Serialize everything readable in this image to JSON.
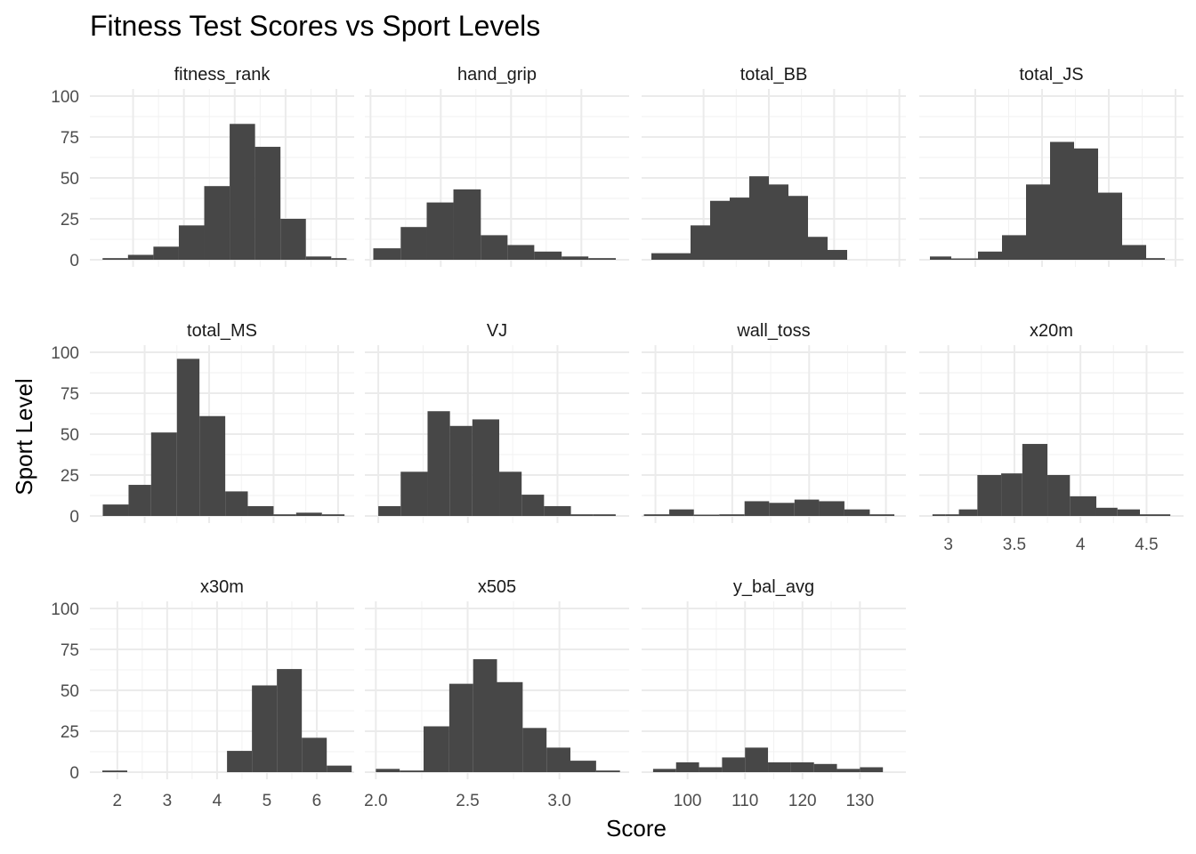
{
  "chart_data": {
    "type": "bar",
    "title": "Fitness Test Scores vs Sport Levels",
    "xlabel": "Score",
    "ylabel": "Sport Level",
    "ylim": [
      0,
      100
    ],
    "y_ticks": [
      0,
      25,
      50,
      75,
      100
    ],
    "grid": true,
    "bar_color": "#474747",
    "facets": [
      {
        "name": "fitness_rank",
        "xlim": [
          -2.85,
          2.35
        ],
        "x_ticks": [
          -2,
          -1,
          0,
          1,
          2
        ],
        "bins": [
          [
            -2.6,
            -2.1,
            1
          ],
          [
            -2.1,
            -1.6,
            3
          ],
          [
            -1.6,
            -1.1,
            8
          ],
          [
            -1.1,
            -0.6,
            21
          ],
          [
            -0.6,
            -0.1,
            45
          ],
          [
            -0.1,
            0.4,
            83
          ],
          [
            0.4,
            0.9,
            69
          ],
          [
            0.9,
            1.4,
            25
          ],
          [
            1.4,
            1.9,
            2
          ],
          [
            1.9,
            2.2,
            1
          ]
        ]
      },
      {
        "name": "hand_grip",
        "xlim": [
          9.2,
          46.8
        ],
        "x_ticks": [
          10,
          20,
          30,
          40
        ],
        "bins": [
          [
            10.4,
            14.3,
            7
          ],
          [
            14.3,
            18.0,
            20
          ],
          [
            18.0,
            21.8,
            35
          ],
          [
            21.8,
            25.7,
            43
          ],
          [
            25.7,
            29.5,
            15
          ],
          [
            29.5,
            33.3,
            9
          ],
          [
            33.3,
            37.2,
            5
          ],
          [
            37.2,
            41.0,
            2
          ],
          [
            41.0,
            44.9,
            1
          ]
        ]
      },
      {
        "name": "total_BB",
        "xlim": [
          1,
          82
        ],
        "x_ticks": [
          20,
          40,
          60,
          80
        ],
        "bins": [
          [
            4,
            10,
            4
          ],
          [
            10,
            16,
            4
          ],
          [
            16,
            22,
            21
          ],
          [
            22,
            28,
            36
          ],
          [
            28,
            34,
            38
          ],
          [
            34,
            40,
            51
          ],
          [
            40,
            46,
            46
          ],
          [
            46,
            52,
            39
          ],
          [
            52,
            58,
            14
          ],
          [
            58,
            64,
            6
          ]
        ]
      },
      {
        "name": "total_JS",
        "xlim": [
          29,
          128
        ],
        "x_ticks": [
          50,
          75,
          100,
          125
        ],
        "bins": [
          [
            33,
            41,
            2
          ],
          [
            41,
            51,
            0
          ],
          [
            51,
            60,
            5
          ],
          [
            60,
            69,
            15
          ],
          [
            69,
            78,
            46
          ],
          [
            78,
            87,
            72
          ],
          [
            87,
            96,
            68
          ],
          [
            96,
            105,
            41
          ],
          [
            105,
            114,
            9
          ],
          [
            114,
            121,
            1
          ]
        ]
      },
      {
        "name": "total_MS",
        "xlim": [
          23,
          105
        ],
        "x_ticks": [
          40,
          60,
          80,
          100
        ],
        "bins": [
          [
            27,
            35,
            7
          ],
          [
            35,
            42,
            19
          ],
          [
            42,
            50,
            51
          ],
          [
            50,
            57,
            96
          ],
          [
            57,
            65,
            61
          ],
          [
            65,
            72,
            15
          ],
          [
            72,
            80,
            6
          ],
          [
            80,
            87,
            1
          ],
          [
            87,
            95,
            2
          ],
          [
            95,
            102,
            1
          ]
        ]
      },
      {
        "name": "VJ",
        "xlim": [
          17,
          76
        ],
        "x_ticks": [
          20,
          40,
          60
        ],
        "bins": [
          [
            20,
            25,
            6
          ],
          [
            25,
            31,
            27
          ],
          [
            31,
            36,
            64
          ],
          [
            36,
            41,
            55
          ],
          [
            41,
            47,
            59
          ],
          [
            47,
            52,
            27
          ],
          [
            52,
            57,
            13
          ],
          [
            57,
            63,
            6
          ],
          [
            63,
            68,
            1
          ],
          [
            68,
            73,
            1
          ]
        ]
      },
      {
        "name": "wall_toss",
        "xlim": [
          -1.8,
          32.6
        ],
        "x_ticks": [
          0,
          10,
          20,
          30
        ],
        "bins": [
          [
            -1.5,
            1.8,
            1
          ],
          [
            1.8,
            5.0,
            4
          ],
          [
            5.0,
            8.3,
            0
          ],
          [
            8.3,
            11.6,
            1
          ],
          [
            11.6,
            14.8,
            9
          ],
          [
            14.8,
            18.1,
            8
          ],
          [
            18.1,
            21.3,
            10
          ],
          [
            21.3,
            24.6,
            9
          ],
          [
            24.6,
            27.9,
            4
          ],
          [
            27.9,
            31.1,
            1
          ]
        ]
      },
      {
        "name": "x20m",
        "xlim": [
          2.78,
          4.78
        ],
        "x_ticks": [
          3.0,
          3.5,
          4.0,
          4.5
        ],
        "bins": [
          [
            2.88,
            2.98,
            1
          ],
          [
            2.98,
            3.08,
            1
          ],
          [
            3.08,
            3.22,
            4
          ],
          [
            3.22,
            3.4,
            25
          ],
          [
            3.4,
            3.56,
            26
          ],
          [
            3.56,
            3.75,
            44
          ],
          [
            3.75,
            3.92,
            25
          ],
          [
            3.92,
            4.12,
            12
          ],
          [
            4.12,
            4.28,
            5
          ],
          [
            4.28,
            4.45,
            4
          ],
          [
            4.45,
            4.68,
            1
          ]
        ]
      },
      {
        "name": "x30m",
        "xlim": [
          1.45,
          6.75
        ],
        "x_ticks": [
          2,
          3,
          4,
          5,
          6
        ],
        "bins": [
          [
            1.7,
            2.2,
            1
          ],
          [
            4.2,
            4.7,
            13
          ],
          [
            4.7,
            5.2,
            53
          ],
          [
            5.2,
            5.7,
            63
          ],
          [
            5.7,
            6.2,
            21
          ],
          [
            6.2,
            6.7,
            4
          ]
        ]
      },
      {
        "name": "x505",
        "xlim": [
          1.94,
          3.38
        ],
        "x_ticks": [
          "2.0",
          "2.5",
          "3.0"
        ],
        "bins": [
          [
            2.0,
            2.13,
            2
          ],
          [
            2.13,
            2.26,
            1
          ],
          [
            2.26,
            2.4,
            28
          ],
          [
            2.4,
            2.53,
            54
          ],
          [
            2.53,
            2.66,
            69
          ],
          [
            2.66,
            2.8,
            55
          ],
          [
            2.8,
            2.93,
            27
          ],
          [
            2.93,
            3.06,
            15
          ],
          [
            3.06,
            3.2,
            7
          ],
          [
            3.2,
            3.33,
            1
          ]
        ]
      },
      {
        "name": "y_bal_avg",
        "xlim": [
          92,
          138
        ],
        "x_ticks": [
          100,
          110,
          120,
          130
        ],
        "bins": [
          [
            94,
            98,
            2
          ],
          [
            98,
            102,
            6
          ],
          [
            102,
            106,
            3
          ],
          [
            106,
            110,
            9
          ],
          [
            110,
            114,
            15
          ],
          [
            114,
            118,
            6
          ],
          [
            118,
            122,
            6
          ],
          [
            122,
            126,
            5
          ],
          [
            126,
            130,
            2
          ],
          [
            130,
            134,
            3
          ]
        ]
      }
    ]
  }
}
